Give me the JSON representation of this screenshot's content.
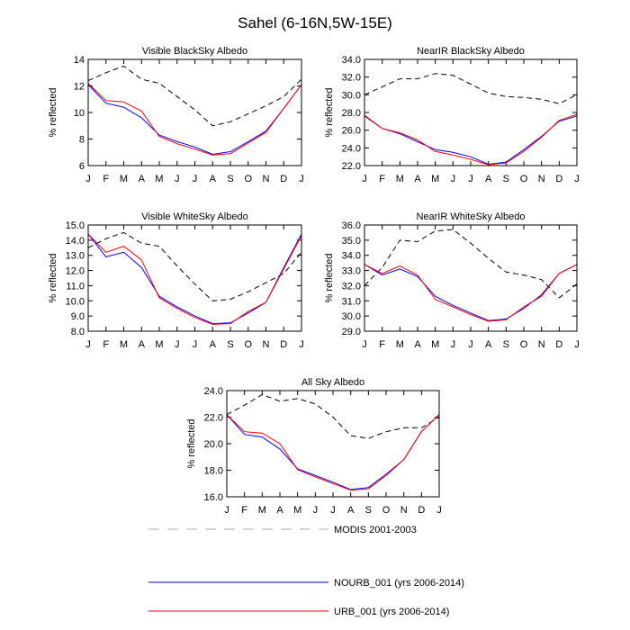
{
  "figure": {
    "title": "Sahel (6-16N,5W-15E)"
  },
  "chart_data": [
    {
      "type": "line",
      "title": "Visible BlackSky Albedo",
      "ylabel": "% reflected",
      "categories": [
        "J",
        "F",
        "M",
        "A",
        "M",
        "J",
        "J",
        "A",
        "S",
        "O",
        "N",
        "D",
        "J"
      ],
      "ylim": [
        6,
        14
      ],
      "yticks": [
        6,
        8,
        10,
        12,
        14
      ],
      "ytick_labels": [
        "6",
        "8",
        "10",
        "12",
        "14"
      ],
      "series": [
        {
          "name": "MODIS 2001-2003",
          "values": [
            12.4,
            13.0,
            13.5,
            12.5,
            12.2,
            11.2,
            10.2,
            9.0,
            9.3,
            9.9,
            10.5,
            11.2,
            12.5
          ]
        },
        {
          "name": "NOURB_001 (yrs 2006-2014)",
          "values": [
            12.1,
            10.7,
            10.4,
            9.6,
            8.3,
            7.8,
            7.4,
            6.85,
            7.05,
            7.8,
            8.6,
            10.3,
            12.1
          ]
        },
        {
          "name": "URB_001 (yrs 2006-2014)",
          "values": [
            12.2,
            10.9,
            10.8,
            10.1,
            8.2,
            7.65,
            7.25,
            6.8,
            6.9,
            7.7,
            8.5,
            10.3,
            12.1
          ]
        }
      ]
    },
    {
      "type": "line",
      "title": "NearIR BlackSky Albedo",
      "ylabel": "% reflected",
      "categories": [
        "J",
        "F",
        "M",
        "A",
        "M",
        "J",
        "J",
        "A",
        "S",
        "O",
        "N",
        "D",
        "J"
      ],
      "ylim": [
        22,
        34
      ],
      "yticks": [
        22,
        24,
        26,
        28,
        30,
        32,
        34
      ],
      "ytick_labels": [
        "22.0",
        "24.0",
        "26.0",
        "28.0",
        "30.0",
        "32.0",
        "34.0"
      ],
      "series": [
        {
          "name": "MODIS 2001-2003",
          "values": [
            30.0,
            30.9,
            31.8,
            31.8,
            32.4,
            32.2,
            31.2,
            30.2,
            29.8,
            29.7,
            29.5,
            29.0,
            30.0
          ]
        },
        {
          "name": "NOURB_001 (yrs 2006-2014)",
          "values": [
            27.6,
            26.2,
            25.6,
            24.7,
            23.8,
            23.5,
            23.0,
            22.15,
            22.4,
            23.8,
            25.3,
            27.0,
            27.6
          ]
        },
        {
          "name": "URB_001 (yrs 2006-2014)",
          "values": [
            27.7,
            26.2,
            25.7,
            24.9,
            23.6,
            23.2,
            22.7,
            22.1,
            22.3,
            23.6,
            25.2,
            27.1,
            27.8
          ]
        }
      ]
    },
    {
      "type": "line",
      "title": "Visible WhiteSky Albedo",
      "ylabel": "% reflected",
      "categories": [
        "J",
        "F",
        "M",
        "A",
        "M",
        "J",
        "J",
        "A",
        "S",
        "O",
        "N",
        "D",
        "J"
      ],
      "ylim": [
        8,
        15
      ],
      "yticks": [
        8,
        9,
        10,
        11,
        12,
        13,
        14,
        15
      ],
      "ytick_labels": [
        "8.0",
        "9.0",
        "10.0",
        "11.0",
        "12.0",
        "13.0",
        "14.0",
        "15.0"
      ],
      "series": [
        {
          "name": "MODIS 2001-2003",
          "values": [
            13.5,
            14.1,
            14.5,
            13.8,
            13.6,
            12.3,
            11.1,
            10.0,
            10.1,
            10.6,
            11.2,
            11.8,
            13.2
          ]
        },
        {
          "name": "NOURB_001 (yrs 2006-2014)",
          "values": [
            14.4,
            12.9,
            13.2,
            12.2,
            10.3,
            9.6,
            9.0,
            8.5,
            8.55,
            9.2,
            9.9,
            12.2,
            14.4
          ]
        },
        {
          "name": "URB_001 (yrs 2006-2014)",
          "values": [
            14.4,
            13.2,
            13.6,
            12.7,
            10.2,
            9.5,
            8.9,
            8.45,
            8.5,
            9.3,
            9.9,
            12.1,
            14.3
          ]
        }
      ]
    },
    {
      "type": "line",
      "title": "NearIR WhiteSky Albedo",
      "ylabel": "% reflected",
      "categories": [
        "J",
        "F",
        "M",
        "A",
        "M",
        "J",
        "J",
        "A",
        "S",
        "O",
        "N",
        "D",
        "J"
      ],
      "ylim": [
        29,
        36
      ],
      "yticks": [
        29,
        30,
        31,
        32,
        33,
        34,
        35,
        36
      ],
      "ytick_labels": [
        "29.0",
        "30.0",
        "31.0",
        "32.0",
        "33.0",
        "34.0",
        "35.0",
        "36.0"
      ],
      "series": [
        {
          "name": "MODIS 2001-2003",
          "values": [
            32.0,
            33.2,
            35.0,
            34.9,
            35.6,
            35.7,
            34.8,
            33.8,
            32.9,
            32.7,
            32.4,
            31.2,
            32.1
          ]
        },
        {
          "name": "NOURB_001 (yrs 2006-2014)",
          "values": [
            33.4,
            32.7,
            33.1,
            32.6,
            31.3,
            30.7,
            30.2,
            29.7,
            29.8,
            30.5,
            31.4,
            32.8,
            33.4
          ]
        },
        {
          "name": "URB_001 (yrs 2006-2014)",
          "values": [
            33.4,
            32.8,
            33.3,
            32.7,
            31.1,
            30.6,
            30.1,
            29.65,
            29.75,
            30.6,
            31.3,
            32.8,
            33.4
          ]
        }
      ]
    },
    {
      "type": "line",
      "title": "All Sky Albedo",
      "ylabel": "% reflected",
      "categories": [
        "J",
        "F",
        "M",
        "A",
        "M",
        "J",
        "J",
        "A",
        "S",
        "O",
        "N",
        "D",
        "J"
      ],
      "ylim": [
        16,
        24
      ],
      "yticks": [
        16,
        18,
        20,
        22,
        24
      ],
      "ytick_labels": [
        "16.0",
        "18.0",
        "20.0",
        "22.0",
        "24.0"
      ],
      "series": [
        {
          "name": "MODIS 2001-2003",
          "values": [
            22.2,
            22.9,
            23.7,
            23.2,
            23.4,
            23.0,
            22.0,
            20.6,
            20.4,
            20.9,
            21.2,
            21.2,
            22.0
          ]
        },
        {
          "name": "NOURB_001 (yrs 2006-2014)",
          "values": [
            22.2,
            20.7,
            20.5,
            19.6,
            18.1,
            17.6,
            17.1,
            16.55,
            16.7,
            17.7,
            18.8,
            20.9,
            22.2
          ]
        },
        {
          "name": "URB_001 (yrs 2006-2014)",
          "values": [
            22.2,
            20.9,
            20.8,
            20.0,
            18.05,
            17.5,
            17.0,
            16.5,
            16.6,
            17.6,
            18.8,
            20.9,
            22.2
          ]
        }
      ]
    }
  ],
  "legend": {
    "placement": "bottom-center",
    "entries": [
      {
        "label": "MODIS 2001-2003",
        "color": "#000000",
        "line_color": "#aaaaaa",
        "dashed": true
      },
      {
        "label": "NOURB_001 (yrs 2006-2014)",
        "color": "#0000ff",
        "line_color": "#0000ff",
        "dashed": false
      },
      {
        "label": "URB_001 (yrs 2006-2014)",
        "color": "#ff0000",
        "line_color": "#ff0000",
        "dashed": false
      }
    ]
  },
  "style": {
    "series_colors": [
      "#000000",
      "#0000ff",
      "#ff0000"
    ],
    "series_dashed": [
      true,
      false,
      false
    ]
  }
}
